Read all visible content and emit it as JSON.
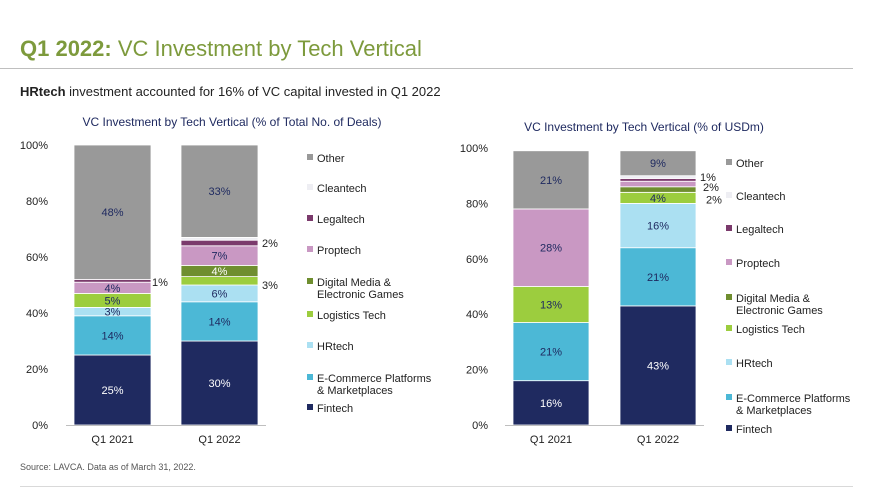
{
  "header": {
    "title_prefix": "Q1 2022:",
    "title_rest": "VC Investment by Tech Vertical",
    "subtitle_bold": "HRtech",
    "subtitle_rest": "investment accounted for 16% of VC capital invested in Q1 2022"
  },
  "footer": {
    "source": "Source: LAVCA. Data as of March 31, 2022."
  },
  "colors": {
    "Fintech": "#1f2a60",
    "E-Commerce Platforms & Marketplaces": "#4cb8d6",
    "HRtech": "#abe0f2",
    "Logistics Tech": "#9ccd3e",
    "Digital Media & Electronic Games": "#6f8e2f",
    "Proptech": "#c998c3",
    "Legaltech": "#7b3a6c",
    "Cleantech": "#eeeef3",
    "Other": "#999999"
  },
  "chart_data": [
    {
      "type": "bar",
      "stacked": true,
      "title": "VC Investment by Tech Vertical (% of Total No. of Deals)",
      "categories": [
        "Q1 2021",
        "Q1 2022"
      ],
      "ylim": [
        0,
        100
      ],
      "yticks": [
        "0%",
        "20%",
        "40%",
        "60%",
        "80%",
        "100%"
      ],
      "series": [
        {
          "name": "Fintech",
          "values": [
            25,
            30
          ],
          "labels": [
            "25%",
            "30%"
          ]
        },
        {
          "name": "E-Commerce Platforms & Marketplaces",
          "values": [
            14,
            14
          ],
          "labels": [
            "14%",
            "14%"
          ]
        },
        {
          "name": "HRtech",
          "values": [
            3,
            6
          ],
          "labels": [
            "3%",
            "6%"
          ]
        },
        {
          "name": "Logistics Tech",
          "values": [
            5,
            3
          ],
          "labels": [
            "5%",
            "3%"
          ]
        },
        {
          "name": "Digital Media & Electronic Games",
          "values": [
            0,
            4
          ],
          "labels": [
            "",
            "4%"
          ]
        },
        {
          "name": "Proptech",
          "values": [
            4,
            7
          ],
          "labels": [
            "4%",
            "7%"
          ]
        },
        {
          "name": "Legaltech",
          "values": [
            1,
            2
          ],
          "labels": [
            "1%",
            "2%"
          ]
        },
        {
          "name": "Cleantech",
          "values": [
            0,
            1
          ],
          "labels": [
            "",
            ""
          ]
        },
        {
          "name": "Other",
          "values": [
            48,
            33
          ],
          "labels": [
            "48%",
            "33%"
          ]
        }
      ],
      "legend": [
        {
          "name": "Other",
          "label": "Other"
        },
        {
          "name": "Cleantech",
          "label": "Cleantech"
        },
        {
          "name": "Legaltech",
          "label": "Legaltech"
        },
        {
          "name": "Proptech",
          "label": "Proptech"
        },
        {
          "name": "Digital Media & Electronic Games",
          "label": "Digital Media & Electronic Games"
        },
        {
          "name": "Logistics Tech",
          "label": "Logistics Tech"
        },
        {
          "name": "HRtech",
          "label": "HRtech"
        },
        {
          "name": "E-Commerce Platforms & Marketplaces",
          "label": "E-Commerce Platforms & Marketplaces"
        },
        {
          "name": "Fintech",
          "label": "Fintech"
        }
      ],
      "legend_lines": [
        [
          "Other"
        ],
        [
          "Cleantech"
        ],
        [
          "Legaltech"
        ],
        [
          "Proptech"
        ],
        [
          "Digital Media &",
          "Electronic Games"
        ],
        [
          "Logistics Tech"
        ],
        [
          "HRtech"
        ],
        [
          "E-Commerce Platforms",
          "& Marketplaces"
        ],
        [
          "Fintech"
        ]
      ],
      "legend_placement": "right"
    },
    {
      "type": "bar",
      "stacked": true,
      "title": "VC Investment by Tech Vertical (% of USDm)",
      "categories": [
        "Q1 2021",
        "Q1 2022"
      ],
      "ylim": [
        0,
        100
      ],
      "yticks": [
        "0%",
        "20%",
        "40%",
        "60%",
        "80%",
        "100%"
      ],
      "series": [
        {
          "name": "Fintech",
          "values": [
            16,
            43
          ],
          "labels": [
            "16%",
            "43%"
          ]
        },
        {
          "name": "E-Commerce Platforms & Marketplaces",
          "values": [
            21,
            21
          ],
          "labels": [
            "21%",
            "21%"
          ]
        },
        {
          "name": "HRtech",
          "values": [
            0,
            16
          ],
          "labels": [
            "",
            "16%"
          ]
        },
        {
          "name": "Logistics Tech",
          "values": [
            13,
            4
          ],
          "labels": [
            "13%",
            "4%"
          ]
        },
        {
          "name": "Digital Media & Electronic Games",
          "values": [
            0,
            2
          ],
          "labels": [
            "",
            "2%"
          ]
        },
        {
          "name": "Proptech",
          "values": [
            28,
            2
          ],
          "labels": [
            "28%",
            "2%"
          ]
        },
        {
          "name": "Legaltech",
          "values": [
            0,
            1
          ],
          "labels": [
            "",
            ""
          ]
        },
        {
          "name": "Cleantech",
          "values": [
            0,
            1
          ],
          "labels": [
            "",
            "1%"
          ]
        },
        {
          "name": "Other",
          "values": [
            21,
            9
          ],
          "labels": [
            "21%",
            "9%"
          ]
        }
      ],
      "legend": [
        {
          "name": "Other",
          "label": "Other"
        },
        {
          "name": "Cleantech",
          "label": "Cleantech"
        },
        {
          "name": "Legaltech",
          "label": "Legaltech"
        },
        {
          "name": "Proptech",
          "label": "Proptech"
        },
        {
          "name": "Digital Media & Electronic Games",
          "label": "Digital Media & Electronic Games"
        },
        {
          "name": "Logistics Tech",
          "label": "Logistics Tech"
        },
        {
          "name": "HRtech",
          "label": "HRtech"
        },
        {
          "name": "E-Commerce Platforms & Marketplaces",
          "label": "E-Commerce Platforms & Marketplaces"
        },
        {
          "name": "Fintech",
          "label": "Fintech"
        }
      ],
      "legend_lines": [
        [
          "Other"
        ],
        [
          "Cleantech"
        ],
        [
          "Legaltech"
        ],
        [
          "Proptech"
        ],
        [
          "Digital Media &",
          "Electronic Games"
        ],
        [
          "Logistics Tech"
        ],
        [
          "HRtech"
        ],
        [
          "E-Commerce Platforms",
          "& Marketplaces"
        ],
        [
          "Fintech"
        ]
      ],
      "legend_placement": "right"
    }
  ]
}
